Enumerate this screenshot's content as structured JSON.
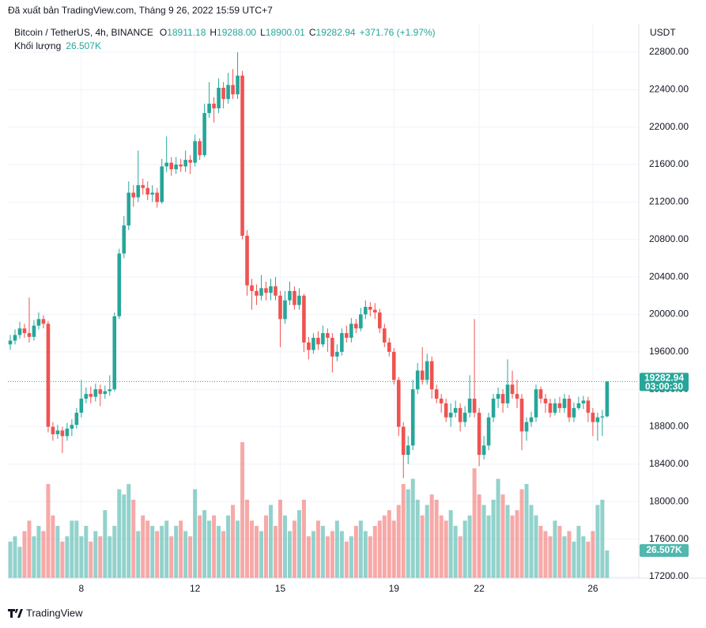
{
  "attribution": "Đã xuất bản TradingView.com, Tháng 9 26, 2022 15:59 UTC+7",
  "footer": {
    "brand": "TradingView"
  },
  "chart_data": {
    "type": "candlestick",
    "currency": "USDT",
    "legend": {
      "symbol": "Bitcoin / TetherUS, 4h, BINANCE",
      "o_label": "O",
      "o": "18911.18",
      "h_label": "H",
      "h": "19288.00",
      "l_label": "L",
      "l": "18900.01",
      "c_label": "C",
      "c": "19282.94",
      "change": "+371.76 (+1.97%)"
    },
    "volume_name": "Khối lượng",
    "volume_label": "26.507K",
    "countdown": "03:00:30",
    "up_color": "#26a69a",
    "down_color": "#ef5350",
    "xlim": [
      -0.5,
      132.7
    ],
    "xticks": [
      {
        "value": 15,
        "label": "8"
      },
      {
        "value": 39,
        "label": "12"
      },
      {
        "value": 57,
        "label": "15"
      },
      {
        "value": 81,
        "label": "19"
      },
      {
        "value": 99,
        "label": "22"
      },
      {
        "value": 123,
        "label": "26"
      }
    ],
    "ylim": [
      17183,
      23104
    ],
    "yticks": [
      {
        "value": 17200,
        "label": "17200.00"
      },
      {
        "value": 17600,
        "label": "17600.00"
      },
      {
        "value": 18000,
        "label": "18000.00"
      },
      {
        "value": 18400,
        "label": "18400.00"
      },
      {
        "value": 18800,
        "label": "18800.00"
      },
      {
        "value": 19200,
        "label": "19200.00"
      },
      {
        "value": 19600,
        "label": "19600.00"
      },
      {
        "value": 20000,
        "label": "20000.00"
      },
      {
        "value": 20400,
        "label": "20400.00"
      },
      {
        "value": 20800,
        "label": "20800.00"
      },
      {
        "value": 21200,
        "label": "21200.00"
      },
      {
        "value": 21600,
        "label": "21600.00"
      },
      {
        "value": 22000,
        "label": "22000.00"
      },
      {
        "value": 22400,
        "label": "22400.00"
      },
      {
        "value": 22800,
        "label": "22800.00"
      }
    ],
    "grid": true,
    "y2lim": [
      0,
      530000
    ],
    "volume_axis": "y2",
    "open": [
      19680,
      19720,
      19780,
      19850,
      19800,
      19760,
      19880,
      19950,
      19900,
      18800,
      18720,
      18760,
      18700,
      18780,
      18820,
      18950,
      19100,
      19150,
      19120,
      19200,
      19150,
      19180,
      19200,
      19980,
      20650,
      20950,
      21300,
      21250,
      21380,
      21350,
      21280,
      21300,
      21200,
      21580,
      21620,
      21550,
      21600,
      21580,
      21650,
      21620,
      21850,
      21700,
      22150,
      22250,
      22200,
      22420,
      22300,
      22450,
      22350,
      22550,
      20840,
      20310,
      20250,
      20200,
      20280,
      20230,
      20300,
      20200,
      19950,
      20150,
      20250,
      20100,
      20200,
      19700,
      19620,
      19750,
      19680,
      19800,
      19750,
      19550,
      19600,
      19800,
      19750,
      19900,
      19850,
      20000,
      20080,
      20050,
      20020,
      19850,
      19700,
      19600,
      19300,
      18800,
      18500,
      18600,
      19200,
      19400,
      19300,
      19500,
      19200,
      19100,
      19050,
      18900,
      18950,
      19000,
      18850,
      18950,
      19100,
      18950,
      18500,
      18600,
      18900,
      19100,
      19150,
      19050,
      19250,
      19150,
      19100,
      18750,
      18850,
      18900,
      19200,
      19100,
      19050,
      18950,
      19050,
      19000,
      19100,
      18900,
      19000,
      19050,
      19080,
      18950,
      18850,
      18900,
      18911.18
    ],
    "high": [
      19780,
      19840,
      19920,
      19900,
      20180,
      19940,
      20020,
      19990,
      19930,
      18850,
      18820,
      18800,
      18840,
      18880,
      19000,
      19300,
      19220,
      19230,
      19260,
      19250,
      19240,
      19350,
      20020,
      20700,
      21050,
      21420,
      21380,
      21750,
      21450,
      21420,
      21380,
      21350,
      21660,
      21900,
      21680,
      21680,
      21660,
      21750,
      21700,
      21920,
      21880,
      22250,
      22480,
      22320,
      22520,
      22480,
      22580,
      22620,
      22800,
      22600,
      20900,
      20380,
      20320,
      20420,
      20350,
      20380,
      20400,
      20250,
      20250,
      20350,
      20300,
      20280,
      20220,
      19760,
      19800,
      19820,
      19880,
      19850,
      19800,
      19680,
      19850,
      19880,
      19960,
      19950,
      20070,
      20150,
      20130,
      20120,
      20060,
      19900,
      19750,
      19640,
      19330,
      18850,
      18700,
      19300,
      19480,
      19650,
      19580,
      19550,
      19250,
      19150,
      19100,
      19050,
      19080,
      19050,
      19020,
      19350,
      19950,
      19000,
      18700,
      18950,
      19150,
      19220,
      19200,
      19520,
      19400,
      19300,
      19150,
      18900,
      18960,
      19250,
      19230,
      19150,
      19100,
      19100,
      19120,
      19150,
      19140,
      19060,
      19120,
      19130,
      19120,
      19000,
      18950,
      18980,
      19288
    ],
    "low": [
      19620,
      19680,
      19740,
      19750,
      19700,
      19720,
      19840,
      19850,
      18740,
      18650,
      18670,
      18520,
      18650,
      18700,
      18780,
      18900,
      19050,
      19050,
      19070,
      19020,
      19100,
      19130,
      19180,
      19950,
      20600,
      20900,
      21150,
      21200,
      21280,
      21220,
      21200,
      21140,
      21180,
      21520,
      21480,
      21500,
      21520,
      21520,
      21500,
      21580,
      21650,
      21680,
      22100,
      22050,
      22150,
      22200,
      22250,
      22300,
      22300,
      20800,
      20200,
      20050,
      20100,
      20150,
      20150,
      20150,
      20150,
      19650,
      19900,
      20100,
      20050,
      20050,
      19600,
      19520,
      19580,
      19620,
      19650,
      19600,
      19380,
      19500,
      19560,
      19700,
      19700,
      19800,
      19820,
      19950,
      19980,
      19950,
      19800,
      19650,
      19550,
      19250,
      18700,
      18250,
      18400,
      18550,
      19150,
      19250,
      19250,
      19100,
      19050,
      18950,
      18850,
      18800,
      18900,
      18750,
      18800,
      18900,
      18900,
      18380,
      18450,
      18550,
      18850,
      19000,
      18950,
      19000,
      19100,
      19000,
      18550,
      18650,
      18800,
      18850,
      19050,
      18950,
      18900,
      18920,
      18950,
      18950,
      18850,
      18850,
      18980,
      18990,
      18850,
      18700,
      18650,
      18700,
      18900.01
    ],
    "close": [
      19720,
      19780,
      19850,
      19800,
      19760,
      19880,
      19950,
      19900,
      18800,
      18720,
      18760,
      18700,
      18780,
      18820,
      18950,
      19100,
      19150,
      19120,
      19200,
      19150,
      19180,
      19200,
      19980,
      20650,
      20950,
      21300,
      21250,
      21380,
      21350,
      21280,
      21300,
      21200,
      21580,
      21620,
      21550,
      21600,
      21580,
      21650,
      21620,
      21850,
      21700,
      22150,
      22250,
      22200,
      22420,
      22300,
      22450,
      22350,
      22550,
      20840,
      20310,
      20250,
      20200,
      20280,
      20230,
      20300,
      20200,
      19950,
      20150,
      20250,
      20100,
      20200,
      19700,
      19620,
      19750,
      19680,
      19800,
      19750,
      19550,
      19600,
      19800,
      19750,
      19900,
      19850,
      20000,
      20080,
      20050,
      20020,
      19850,
      19700,
      19600,
      19300,
      18800,
      18500,
      18600,
      19200,
      19400,
      19300,
      19500,
      19200,
      19100,
      19050,
      18900,
      18950,
      19000,
      18850,
      18950,
      19100,
      18950,
      18500,
      18600,
      18900,
      19100,
      19150,
      19050,
      19250,
      19150,
      19100,
      18750,
      18850,
      18900,
      19200,
      19100,
      19050,
      18950,
      19050,
      19000,
      19100,
      18900,
      19000,
      19050,
      19080,
      18950,
      18850,
      18900,
      18911.18,
      19282.94
    ],
    "volume": [
      35000,
      40000,
      30000,
      45000,
      55000,
      40000,
      50000,
      45000,
      90000,
      60000,
      50000,
      35000,
      40000,
      55000,
      55000,
      40000,
      50000,
      35000,
      45000,
      40000,
      65000,
      40000,
      50000,
      85000,
      80000,
      90000,
      75000,
      45000,
      60000,
      55000,
      50000,
      45000,
      50000,
      55000,
      40000,
      50000,
      55000,
      45000,
      40000,
      85000,
      60000,
      65000,
      55000,
      60000,
      50000,
      45000,
      60000,
      70000,
      55000,
      130000,
      75000,
      55000,
      50000,
      45000,
      60000,
      70000,
      50000,
      75000,
      60000,
      45000,
      55000,
      65000,
      75000,
      40000,
      45000,
      55000,
      50000,
      40000,
      45000,
      55000,
      45000,
      35000,
      40000,
      50000,
      55000,
      45000,
      40000,
      50000,
      55000,
      60000,
      65000,
      55000,
      70000,
      90000,
      85000,
      95000,
      75000,
      60000,
      70000,
      80000,
      75000,
      60000,
      55000,
      65000,
      50000,
      40000,
      55000,
      60000,
      105000,
      80000,
      70000,
      60000,
      75000,
      95000,
      80000,
      70000,
      60000,
      65000,
      85000,
      90000,
      70000,
      60000,
      50000,
      45000,
      40000,
      55000,
      50000,
      40000,
      45000,
      35000,
      50000,
      40000,
      35000,
      45000,
      70000,
      75000,
      26507
    ]
  }
}
